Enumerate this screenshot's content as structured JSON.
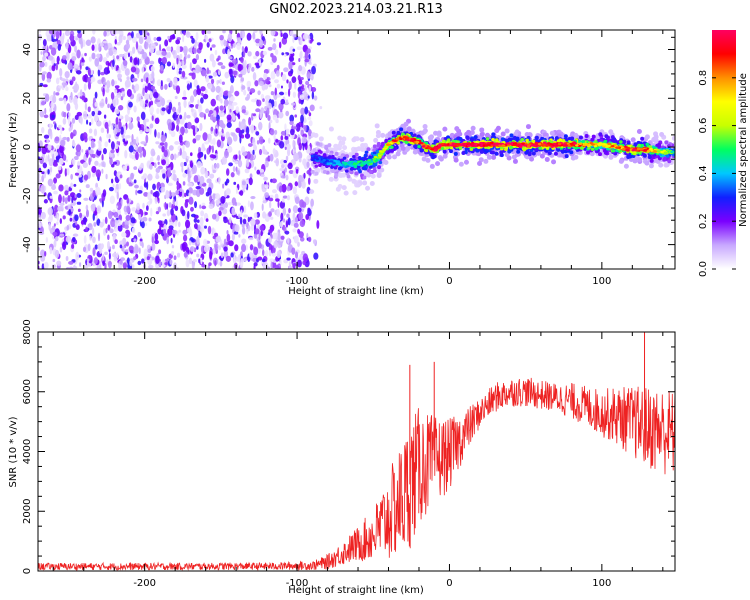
{
  "title": "GN02.2023.214.03.21.R13",
  "chart_data": [
    {
      "type": "heatmap",
      "title": "GN02.2023.214.03.21.R13",
      "xlabel": "Height of straight line (km)",
      "ylabel": "Frequency (Hz)",
      "xlim": [
        -270,
        148
      ],
      "ylim": [
        -50,
        48
      ],
      "x_ticks": [
        -200,
        -100,
        0,
        100
      ],
      "y_ticks": [
        -40,
        -20,
        0,
        20,
        40
      ],
      "colorbar": {
        "label": "Normalized spectral amplitude",
        "range": [
          0,
          1
        ],
        "ticks": [
          0.0,
          0.2,
          0.4,
          0.6,
          0.8
        ],
        "colors": [
          "#ffffff",
          "#c8a8ff",
          "#7a00ff",
          "#1020ff",
          "#00c8ff",
          "#00ff60",
          "#c8ff00",
          "#ffff00",
          "#ff9000",
          "#ff0000",
          "#ff0060"
        ]
      },
      "noise_region": {
        "x": [
          -270,
          -90
        ],
        "frequency": [
          -50,
          48
        ],
        "amplitude": 0.15
      },
      "signal_ridge": {
        "x": [
          -90,
          -80,
          -70,
          -60,
          -50,
          -45,
          -40,
          -35,
          -30,
          -25,
          -20,
          -15,
          -10,
          -5,
          0,
          10,
          20,
          40,
          60,
          80,
          100,
          110,
          120,
          130,
          140,
          148
        ],
        "frequency": [
          -4,
          -6,
          -7,
          -7,
          -6,
          -3,
          1,
          3,
          4,
          3,
          2,
          0,
          -1,
          1,
          1,
          1,
          1,
          1,
          1,
          1,
          1,
          0,
          -1,
          -1,
          -2,
          -2
        ],
        "amplitude": [
          0.3,
          0.35,
          0.4,
          0.45,
          0.5,
          0.6,
          0.75,
          0.85,
          0.9,
          0.9,
          0.85,
          0.85,
          0.9,
          0.9,
          0.95,
          0.95,
          0.95,
          0.95,
          0.95,
          0.9,
          0.7,
          0.8,
          0.9,
          0.85,
          0.6,
          0.5
        ]
      }
    },
    {
      "type": "line",
      "xlabel": "Height of straight line (km)",
      "ylabel": "SNR (10 * v/v)",
      "xlim": [
        -270,
        148
      ],
      "ylim": [
        0,
        8000
      ],
      "x_ticks": [
        -200,
        -100,
        0,
        100
      ],
      "y_ticks": [
        0,
        2000,
        4000,
        6000,
        8000
      ],
      "color": "#ee2222",
      "series": [
        {
          "x": [
            -270,
            -200,
            -120,
            -90,
            -80,
            -70,
            -60,
            -50,
            -40,
            -30,
            -25,
            -20,
            -10,
            0,
            10,
            20,
            30,
            40,
            50,
            60,
            70,
            80,
            90,
            100,
            110,
            120,
            130,
            140,
            148
          ],
          "values": [
            150,
            150,
            160,
            180,
            300,
            600,
            900,
            1200,
            1800,
            2500,
            3000,
            3500,
            3700,
            3900,
            4600,
            5300,
            5800,
            6000,
            6000,
            5900,
            5800,
            5700,
            5500,
            5300,
            5200,
            5000,
            4800,
            4700,
            4600
          ],
          "spread": [
            120,
            120,
            120,
            150,
            250,
            400,
            600,
            900,
            1500,
            2000,
            2200,
            2000,
            1500,
            1200,
            800,
            500,
            500,
            500,
            500,
            500,
            500,
            600,
            700,
            800,
            1000,
            1200,
            1400,
            1500,
            1500
          ]
        }
      ],
      "spikes": [
        {
          "x": -26,
          "value": 6900
        },
        {
          "x": -10,
          "value": 7000
        },
        {
          "x": 128,
          "value": 8100
        }
      ]
    }
  ]
}
